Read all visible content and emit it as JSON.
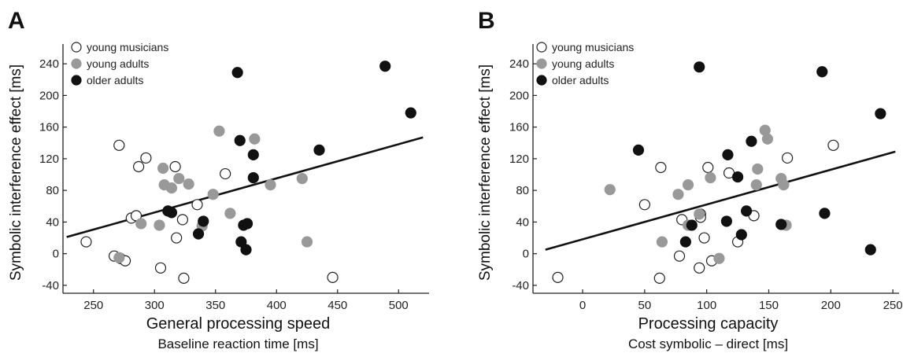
{
  "chart_data": [
    {
      "panel": "A",
      "type": "scatter",
      "xlabel": "General processing speed",
      "xsublabel": "Baseline reaction time [ms]",
      "ylabel": "Symbolic interference effect [ms]",
      "xlim": [
        225,
        525
      ],
      "ylim": [
        -50,
        265
      ],
      "xticks": [
        250,
        300,
        350,
        400,
        450,
        500
      ],
      "yticks": [
        -40,
        0,
        40,
        80,
        120,
        160,
        200,
        240
      ],
      "legend_position": "top-left",
      "fit_line": {
        "x": [
          228,
          520
        ],
        "y": [
          21,
          147
        ]
      },
      "series": [
        {
          "name": "young musicians",
          "color": "#ffffff",
          "points": [
            [
              244,
              15
            ],
            [
              267,
              -3
            ],
            [
              272,
              -6
            ],
            [
              276,
              -9
            ],
            [
              271,
              137
            ],
            [
              281,
              45
            ],
            [
              285,
              48
            ],
            [
              287,
              110
            ],
            [
              293,
              121
            ],
            [
              305,
              -18
            ],
            [
              317,
              110
            ],
            [
              318,
              20
            ],
            [
              323,
              43
            ],
            [
              324,
              -31
            ],
            [
              335,
              62
            ],
            [
              358,
              101
            ],
            [
              446,
              -30
            ]
          ]
        },
        {
          "name": "young adults",
          "color": "#999999",
          "points": [
            [
              271,
              -5
            ],
            [
              289,
              38
            ],
            [
              304,
              36
            ],
            [
              307,
              108
            ],
            [
              308,
              87
            ],
            [
              314,
              83
            ],
            [
              320,
              95
            ],
            [
              328,
              88
            ],
            [
              339,
              35
            ],
            [
              348,
              75
            ],
            [
              353,
              155
            ],
            [
              362,
              51
            ],
            [
              382,
              145
            ],
            [
              395,
              87
            ],
            [
              421,
              95
            ],
            [
              425,
              15
            ]
          ]
        },
        {
          "name": "older adults",
          "color": "#111111",
          "points": [
            [
              311,
              54
            ],
            [
              314,
              52
            ],
            [
              336,
              25
            ],
            [
              340,
              41
            ],
            [
              368,
              229
            ],
            [
              370,
              143
            ],
            [
              371,
              15
            ],
            [
              373,
              36
            ],
            [
              375,
              5
            ],
            [
              376,
              38
            ],
            [
              381,
              96
            ],
            [
              381,
              125
            ],
            [
              435,
              131
            ],
            [
              489,
              237
            ],
            [
              510,
              178
            ]
          ]
        }
      ]
    },
    {
      "panel": "B",
      "type": "scatter",
      "xlabel": "Processing capacity",
      "xsublabel": "Cost symbolic – direct [ms]",
      "ylabel": "Symbolic interference effect [ms]",
      "xlim": [
        -40,
        255
      ],
      "ylim": [
        -50,
        265
      ],
      "xticks": [
        0,
        50,
        100,
        150,
        200,
        250
      ],
      "yticks": [
        -40,
        0,
        40,
        80,
        120,
        160,
        200,
        240
      ],
      "legend_position": "top-left",
      "fit_line": {
        "x": [
          -30,
          252
        ],
        "y": [
          5,
          129
        ]
      },
      "series": [
        {
          "name": "young musicians",
          "color": "#ffffff",
          "points": [
            [
              -20,
              -30
            ],
            [
              50,
              62
            ],
            [
              62,
              -31
            ],
            [
              63,
              109
            ],
            [
              78,
              -3
            ],
            [
              80,
              43
            ],
            [
              94,
              -18
            ],
            [
              95,
              50
            ],
            [
              95,
              46
            ],
            [
              98,
              20
            ],
            [
              101,
              109
            ],
            [
              104,
              -9
            ],
            [
              118,
              102
            ],
            [
              125,
              15
            ],
            [
              138,
              48
            ],
            [
              165,
              121
            ],
            [
              202,
              137
            ]
          ]
        },
        {
          "name": "young adults",
          "color": "#999999",
          "points": [
            [
              22,
              81
            ],
            [
              64,
              15
            ],
            [
              77,
              75
            ],
            [
              85,
              87
            ],
            [
              85,
              36
            ],
            [
              94,
              50
            ],
            [
              103,
              96
            ],
            [
              110,
              -6
            ],
            [
              140,
              87
            ],
            [
              141,
              107
            ],
            [
              147,
              156
            ],
            [
              149,
              145
            ],
            [
              160,
              95
            ],
            [
              162,
              87
            ],
            [
              164,
              36
            ]
          ]
        },
        {
          "name": "older adults",
          "color": "#111111",
          "points": [
            [
              45,
              131
            ],
            [
              83,
              15
            ],
            [
              88,
              36
            ],
            [
              94,
              236
            ],
            [
              116,
              41
            ],
            [
              117,
              125
            ],
            [
              125,
              97
            ],
            [
              128,
              24
            ],
            [
              132,
              54
            ],
            [
              136,
              142
            ],
            [
              160,
              37
            ],
            [
              193,
              230
            ],
            [
              195,
              51
            ],
            [
              232,
              5
            ],
            [
              240,
              177
            ]
          ]
        }
      ]
    }
  ]
}
